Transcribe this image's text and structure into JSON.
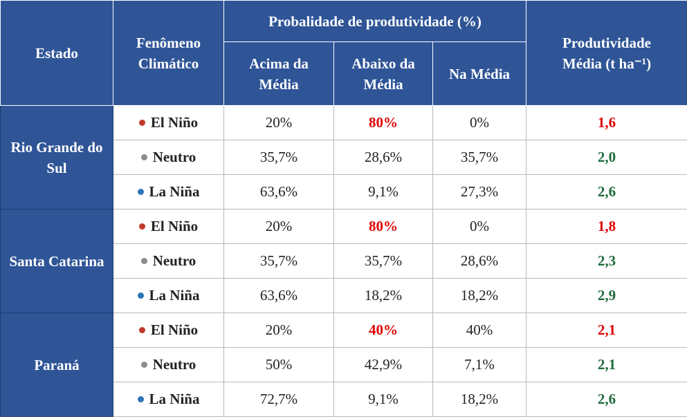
{
  "header": {
    "estado": "Estado",
    "fenomeno": "Fenômeno Climático",
    "probabilidade": "Probalidade de produtividade (%)",
    "acima": "Acima da Média",
    "abaixo": "Abaixo da Média",
    "na_media": "Na Média",
    "produtividade": "Produtividade Média (t ha⁻¹)"
  },
  "groups": [
    {
      "estado": "Rio Grande do Sul",
      "rows": [
        {
          "fenomeno": "El Niño",
          "acima": "20%",
          "abaixo": "80%",
          "na_media": "0%",
          "produtividade": "1,6"
        },
        {
          "fenomeno": "Neutro",
          "acima": "35,7%",
          "abaixo": "28,6%",
          "na_media": "35,7%",
          "produtividade": "2,0"
        },
        {
          "fenomeno": "La Niña",
          "acima": "63,6%",
          "abaixo": "9,1%",
          "na_media": "27,3%",
          "produtividade": "2,6"
        }
      ]
    },
    {
      "estado": "Santa Catarina",
      "rows": [
        {
          "fenomeno": "El Niño",
          "acima": "20%",
          "abaixo": "80%",
          "na_media": "0%",
          "produtividade": "1,8"
        },
        {
          "fenomeno": "Neutro",
          "acima": "35,7%",
          "abaixo": "35,7%",
          "na_media": "28,6%",
          "produtividade": "2,3"
        },
        {
          "fenomeno": "La Niña",
          "acima": "63,6%",
          "abaixo": "18,2%",
          "na_media": "18,2%",
          "produtividade": "2,9"
        }
      ]
    },
    {
      "estado": "Paraná",
      "rows": [
        {
          "fenomeno": "El Niño",
          "acima": "20%",
          "abaixo": "40%",
          "na_media": "40%",
          "produtividade": "2,1"
        },
        {
          "fenomeno": "Neutro",
          "acima": "50%",
          "abaixo": "42,9%",
          "na_media": "7,1%",
          "produtividade": "2,1"
        },
        {
          "fenomeno": "La Niña",
          "acima": "72,7%",
          "abaixo": "9,1%",
          "na_media": "18,2%",
          "produtividade": "2,6"
        }
      ]
    }
  ]
}
